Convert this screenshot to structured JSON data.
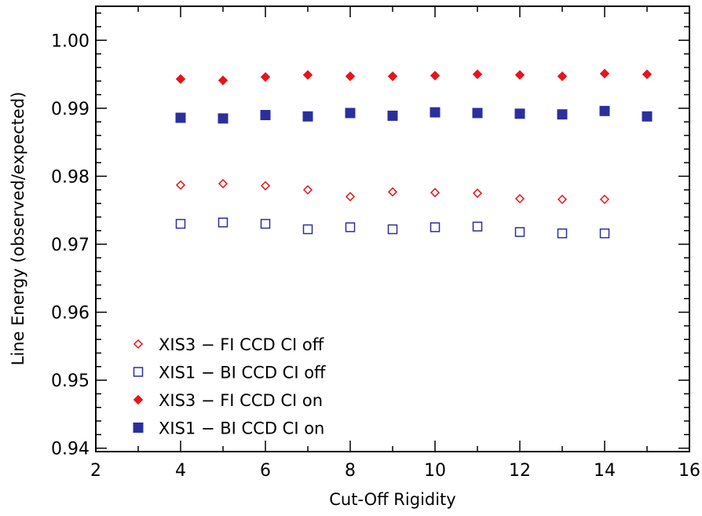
{
  "chart_data": {
    "type": "scatter",
    "xlabel": "Cut-Off Rigidity",
    "ylabel": "Line Energy (observed/expected)",
    "xlim": [
      2,
      16
    ],
    "ylim": [
      0.9395,
      1.005
    ],
    "xticks": [
      "2",
      "4",
      "6",
      "8",
      "10",
      "12",
      "14",
      "16"
    ],
    "yticks": [
      "0.94",
      "0.95",
      "0.96",
      "0.97",
      "0.98",
      "0.99",
      "1.00"
    ],
    "legend_position": "bottom-left",
    "series": [
      {
        "name": "XIS3 − FI CCD CI off",
        "marker": "diamond-open",
        "color": "#e8141c",
        "x": [
          4,
          5,
          6,
          7,
          8,
          9,
          10,
          11,
          12,
          13,
          14
        ],
        "y": [
          0.9787,
          0.9789,
          0.9786,
          0.978,
          0.977,
          0.9777,
          0.9776,
          0.9775,
          0.9767,
          0.9766,
          0.9766
        ]
      },
      {
        "name": "XIS1 − BI CCD CI off",
        "marker": "square-open",
        "color": "#2b2f9e",
        "x": [
          4,
          5,
          6,
          7,
          8,
          9,
          10,
          11,
          12,
          13,
          14
        ],
        "y": [
          0.973,
          0.9732,
          0.973,
          0.9722,
          0.9725,
          0.9722,
          0.9725,
          0.9726,
          0.9718,
          0.9716,
          0.9716
        ]
      },
      {
        "name": "XIS3 − FI CCD CI on",
        "marker": "diamond-filled",
        "color": "#e8141c",
        "x": [
          4,
          5,
          6,
          7,
          8,
          9,
          10,
          11,
          12,
          13,
          14,
          15
        ],
        "y": [
          0.9943,
          0.9941,
          0.9946,
          0.9949,
          0.9947,
          0.9947,
          0.9948,
          0.995,
          0.9949,
          0.9947,
          0.9951,
          0.995
        ]
      },
      {
        "name": "XIS1 − BI CCD CI on",
        "marker": "square-filled",
        "color": "#2b2f9e",
        "x": [
          4,
          5,
          6,
          7,
          8,
          9,
          10,
          11,
          12,
          13,
          14,
          15
        ],
        "y": [
          0.9886,
          0.9885,
          0.989,
          0.9888,
          0.9893,
          0.9889,
          0.9894,
          0.9893,
          0.9892,
          0.9891,
          0.9896,
          0.9888
        ]
      }
    ]
  }
}
